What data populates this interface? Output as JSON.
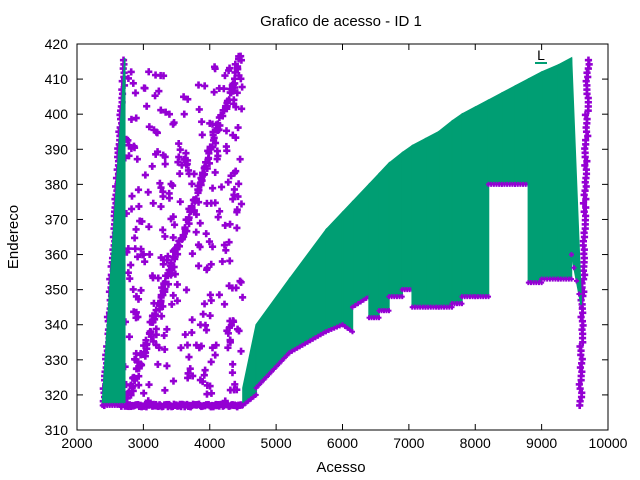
{
  "chart_data": {
    "type": "scatter",
    "title": "Grafico de acesso - ID 1",
    "xlabel": "Acesso",
    "ylabel": "Endereco",
    "xlim": [
      2000,
      10000
    ],
    "ylim": [
      310,
      420
    ],
    "x_ticks": [
      2000,
      3000,
      4000,
      5000,
      6000,
      7000,
      8000,
      9000,
      10000
    ],
    "y_ticks": [
      310,
      320,
      330,
      340,
      350,
      360,
      370,
      380,
      390,
      400,
      410,
      420
    ],
    "grid": false,
    "legend_placement": "top-right",
    "legend_label": "L",
    "colors": {
      "purple": "#9400d3",
      "green": "#009e73"
    },
    "marker": "plus",
    "purple_structures": [
      {
        "kind": "band",
        "x_start": 2400,
        "x_end": 2720,
        "y_start": 317,
        "y_end": 416
      },
      {
        "kind": "baseline",
        "x_start": 2650,
        "x_end": 4500,
        "y": 317
      },
      {
        "kind": "diagonal",
        "x_start": 2750,
        "x_end": 4480,
        "y_start": 318,
        "y_end": 416
      },
      {
        "kind": "band",
        "x_start": 9580,
        "x_end": 9700,
        "y_start": 317,
        "y_end": 416
      }
    ],
    "green_bands": [
      {
        "x_start": 2380,
        "x_end": 2720,
        "y_bottom_start": 317,
        "y_bottom_end": 317,
        "y_top_start": 317,
        "y_top_end": 416
      },
      {
        "x_start": 4500,
        "x_end": 4700,
        "y_bottom_start": 317,
        "y_bottom_end": 320,
        "y_top_start": 322,
        "y_top_end": 340
      },
      {
        "x_start": 4700,
        "x_end": 5200,
        "y_bottom_start": 322,
        "y_bottom_end": 332,
        "y_top_start": 340,
        "y_top_end": 353
      },
      {
        "x_start": 5200,
        "x_end": 5750,
        "y_bottom_start": 332,
        "y_bottom_end": 338,
        "y_top_start": 353,
        "y_top_end": 367
      },
      {
        "x_start": 5750,
        "x_end": 6000,
        "y_bottom_start": 338,
        "y_bottom_end": 340,
        "y_top_start": 367,
        "y_top_end": 372
      },
      {
        "x_start": 6000,
        "x_end": 6150,
        "y_bottom_start": 340,
        "y_bottom_end": 338,
        "y_top_start": 372,
        "y_top_end": 375
      },
      {
        "x_start": 6150,
        "x_end": 6400,
        "y_bottom_start": 345,
        "y_bottom_end": 348,
        "y_top_start": 375,
        "y_top_end": 380
      },
      {
        "x_start": 6400,
        "x_end": 6550,
        "y_bottom_start": 342,
        "y_bottom_end": 342,
        "y_top_start": 380,
        "y_top_end": 383
      },
      {
        "x_start": 6550,
        "x_end": 6700,
        "y_bottom_start": 344,
        "y_bottom_end": 344,
        "y_top_start": 383,
        "y_top_end": 386
      },
      {
        "x_start": 6700,
        "x_end": 6900,
        "y_bottom_start": 348,
        "y_bottom_end": 348,
        "y_top_start": 386,
        "y_top_end": 389
      },
      {
        "x_start": 6900,
        "x_end": 7050,
        "y_bottom_start": 350,
        "y_bottom_end": 350,
        "y_top_start": 389,
        "y_top_end": 391
      },
      {
        "x_start": 7050,
        "x_end": 7250,
        "y_bottom_start": 345,
        "y_bottom_end": 345,
        "y_top_start": 391,
        "y_top_end": 393
      },
      {
        "x_start": 7250,
        "x_end": 7450,
        "y_bottom_start": 345,
        "y_bottom_end": 345,
        "y_top_start": 393,
        "y_top_end": 395
      },
      {
        "x_start": 7450,
        "x_end": 7650,
        "y_bottom_start": 345,
        "y_bottom_end": 345,
        "y_top_start": 395,
        "y_top_end": 398
      },
      {
        "x_start": 7650,
        "x_end": 7800,
        "y_bottom_start": 346,
        "y_bottom_end": 346,
        "y_top_start": 398,
        "y_top_end": 400
      },
      {
        "x_start": 7800,
        "x_end": 8000,
        "y_bottom_start": 348,
        "y_bottom_end": 348,
        "y_top_start": 400,
        "y_top_end": 402
      },
      {
        "x_start": 8000,
        "x_end": 8200,
        "y_bottom_start": 348,
        "y_bottom_end": 348,
        "y_top_start": 402,
        "y_top_end": 404
      },
      {
        "x_start": 8200,
        "x_end": 8400,
        "y_bottom_start": 380,
        "y_bottom_end": 380,
        "y_top_start": 404,
        "y_top_end": 406
      },
      {
        "x_start": 8400,
        "x_end": 8600,
        "y_bottom_start": 380,
        "y_bottom_end": 380,
        "y_top_start": 406,
        "y_top_end": 408
      },
      {
        "x_start": 8600,
        "x_end": 8800,
        "y_bottom_start": 380,
        "y_bottom_end": 380,
        "y_top_start": 408,
        "y_top_end": 410
      },
      {
        "x_start": 8800,
        "x_end": 9000,
        "y_bottom_start": 352,
        "y_bottom_end": 352,
        "y_top_start": 410,
        "y_top_end": 412
      },
      {
        "x_start": 9000,
        "x_end": 9250,
        "y_bottom_start": 353,
        "y_bottom_end": 353,
        "y_top_start": 412,
        "y_top_end": 414
      },
      {
        "x_start": 9250,
        "x_end": 9450,
        "y_bottom_start": 353,
        "y_bottom_end": 353,
        "y_top_start": 414,
        "y_top_end": 416
      },
      {
        "x_start": 9450,
        "x_end": 9600,
        "y_bottom_start": 360,
        "y_bottom_end": 345,
        "y_top_start": 416,
        "y_top_end": 345
      }
    ]
  }
}
